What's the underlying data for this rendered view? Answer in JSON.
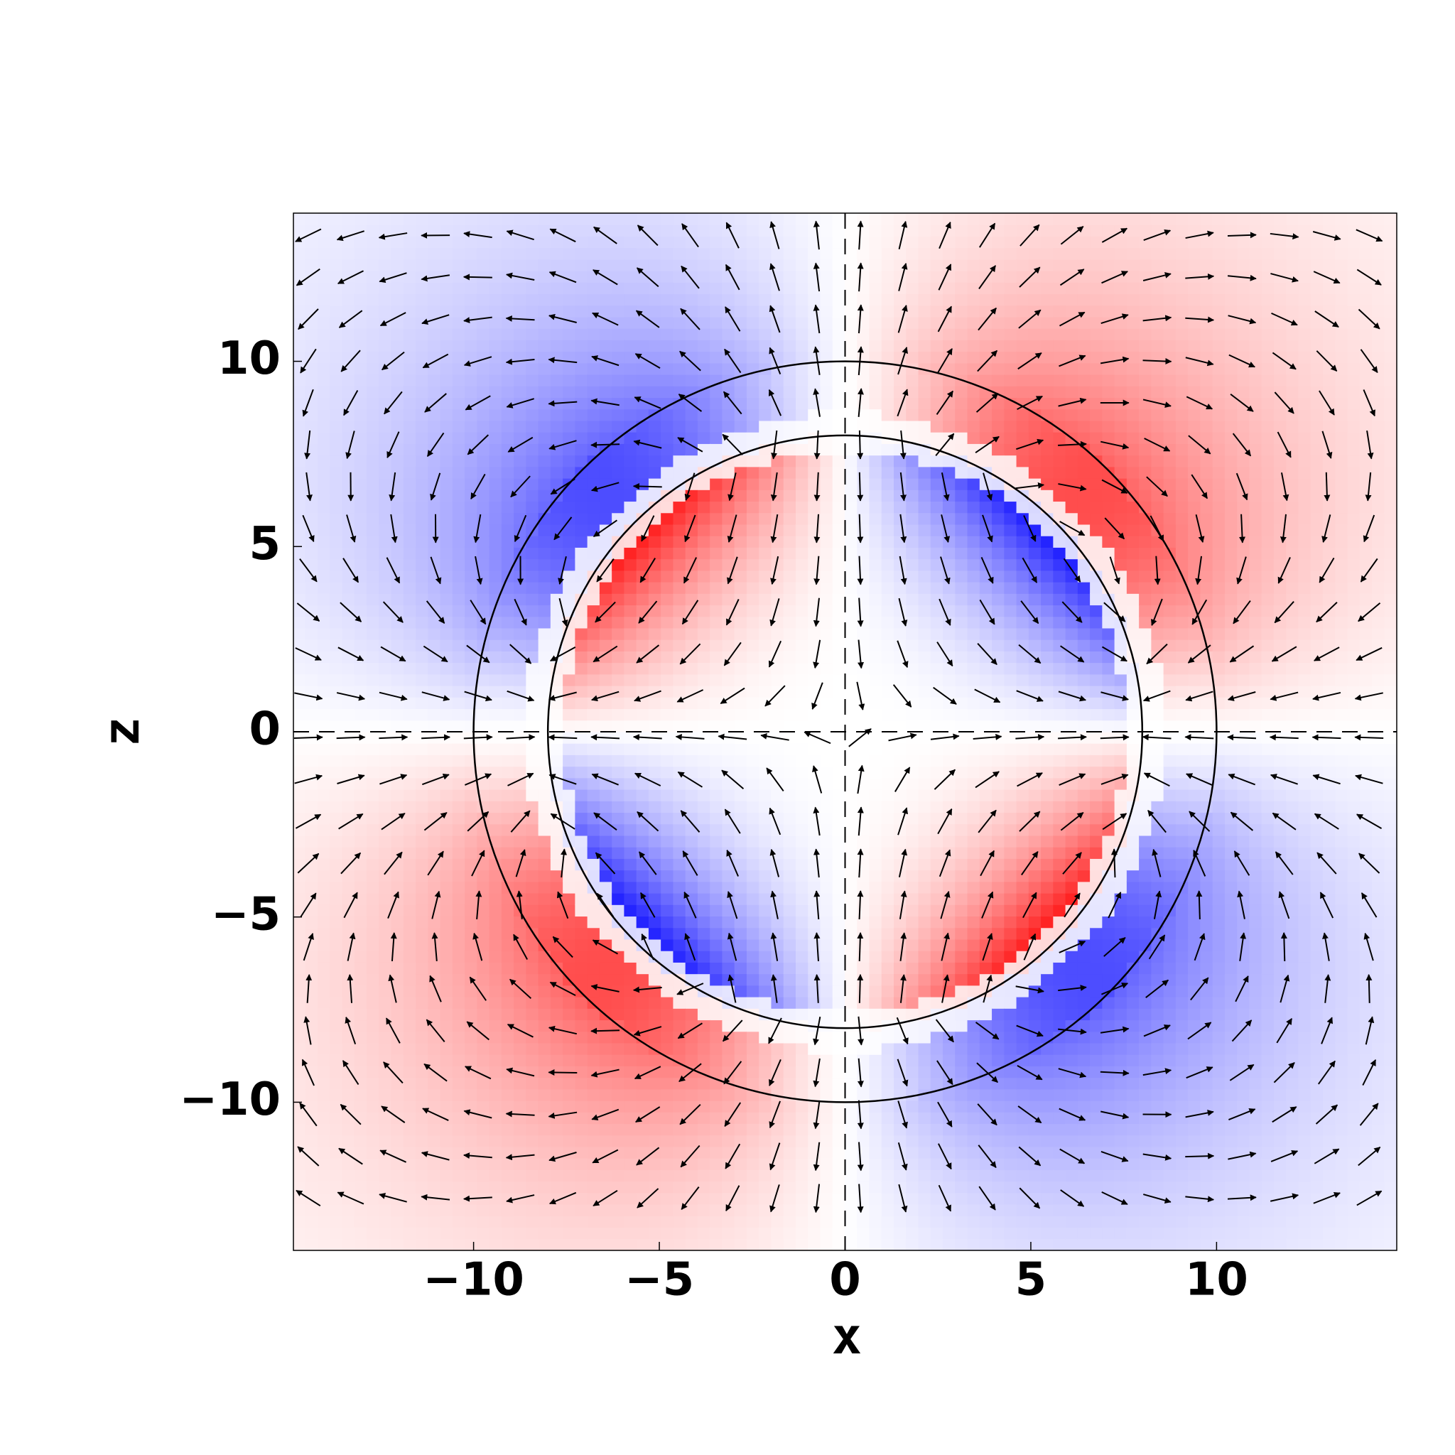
{
  "chart_data": {
    "type": "vector-field",
    "x_label": "x",
    "y_label": "z",
    "xlim": [
      -14.85,
      14.85
    ],
    "ylim": [
      -14,
      14
    ],
    "xticks": [
      {
        "value": -10,
        "label": "−10"
      },
      {
        "value": -5,
        "label": "−5"
      },
      0,
      5,
      10
    ],
    "yticks": [
      {
        "value": -10,
        "label": "−10"
      },
      {
        "value": -5,
        "label": "−5"
      },
      0,
      5,
      10
    ],
    "circle_radii": [
      8,
      10
    ]
  }
}
